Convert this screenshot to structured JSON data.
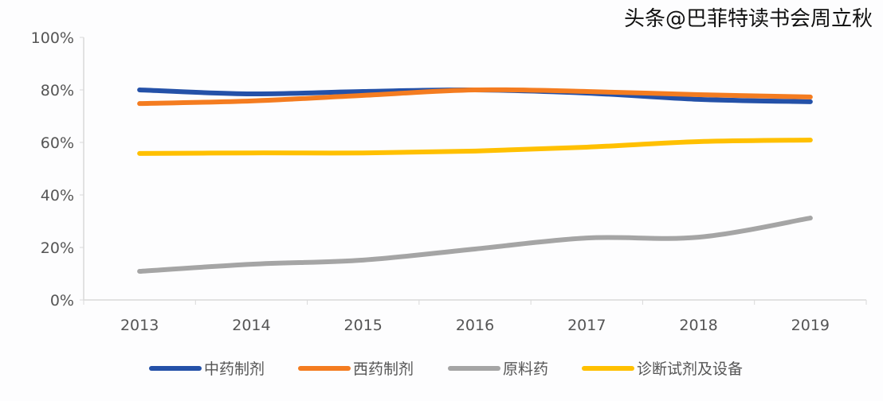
{
  "chart_data": {
    "type": "line",
    "categories": [
      "2013",
      "2014",
      "2015",
      "2016",
      "2017",
      "2018",
      "2019"
    ],
    "ylim": [
      0,
      100
    ],
    "yticks": [
      "0%",
      "20%",
      "40%",
      "60%",
      "80%",
      "100%"
    ],
    "ytick_values": [
      0,
      20,
      40,
      60,
      80,
      100
    ],
    "grid": false,
    "legend_position": "bottom",
    "series": [
      {
        "name": "中药制剂",
        "color": "#2451a8",
        "values": [
          80.0,
          78.5,
          79.4,
          80.0,
          78.8,
          76.4,
          75.5
        ]
      },
      {
        "name": "西药制剂",
        "color": "#f47c20",
        "values": [
          74.8,
          75.8,
          77.9,
          80.0,
          79.4,
          78.2,
          77.3
        ]
      },
      {
        "name": "原料药",
        "color": "#a5a5a5",
        "values": [
          10.9,
          13.6,
          15.2,
          19.4,
          23.6,
          23.9,
          31.2
        ]
      },
      {
        "name": "诊断试剂及设备",
        "color": "#ffc000",
        "values": [
          55.8,
          56.0,
          56.0,
          56.7,
          58.2,
          60.3,
          60.9
        ]
      }
    ]
  },
  "watermark": "头条@巴菲特读书会周立秋"
}
